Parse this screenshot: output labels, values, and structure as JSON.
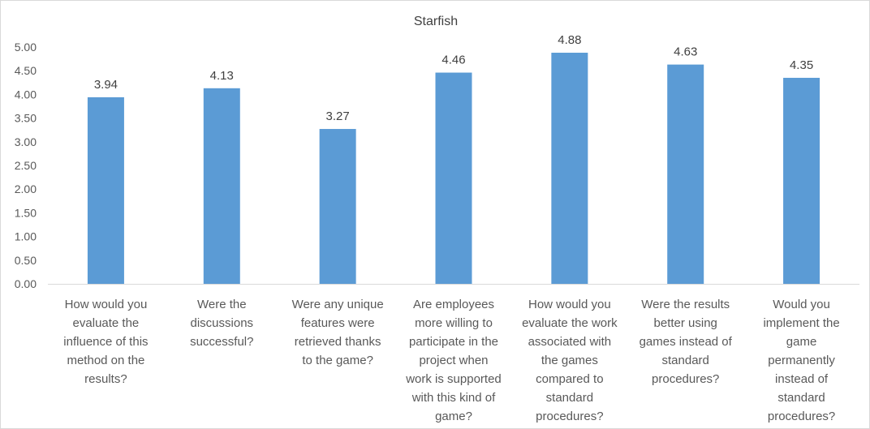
{
  "chart_data": {
    "type": "bar",
    "title": "Starfish",
    "xlabel": "",
    "ylabel": "",
    "ylim": [
      0,
      5
    ],
    "y_ticks": [
      "0.00",
      "0.50",
      "1.00",
      "1.50",
      "2.00",
      "2.50",
      "3.00",
      "3.50",
      "4.00",
      "4.50",
      "5.00"
    ],
    "grid": false,
    "legend": "none",
    "bar_color": "#5b9bd5",
    "categories": [
      [
        "How would you",
        "evaluate the",
        "influence of this",
        "method on the",
        "results?"
      ],
      [
        "Were the",
        "discussions",
        "successful?"
      ],
      [
        "Were any unique",
        "features were",
        "retrieved thanks",
        "to the game?"
      ],
      [
        "Are employees",
        "more willing to",
        "participate in the",
        "project when",
        "work is supported",
        "with this kind of",
        "game?"
      ],
      [
        "How would you",
        "evaluate the work",
        "associated with",
        "the games",
        "compared to",
        "standard",
        "procedures?"
      ],
      [
        "Were the results",
        "better using",
        "games instead of",
        "standard",
        "procedures?"
      ],
      [
        "Would you",
        "implement the",
        "game",
        "permanently",
        "instead of",
        "standard",
        "procedures?"
      ]
    ],
    "values": [
      3.94,
      4.13,
      3.27,
      4.46,
      4.88,
      4.63,
      4.35
    ],
    "value_labels": [
      "3.94",
      "4.13",
      "3.27",
      "4.46",
      "4.88",
      "4.63",
      "4.35"
    ]
  }
}
